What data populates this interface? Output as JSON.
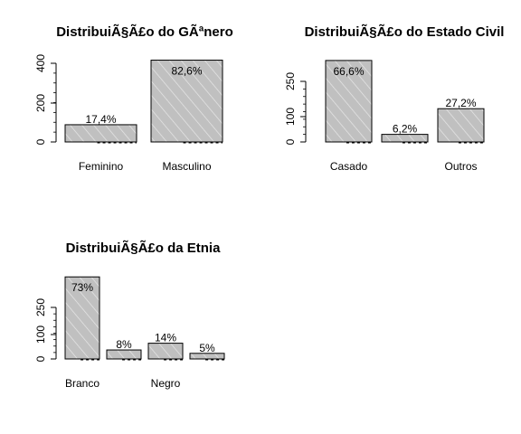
{
  "chart_data": [
    {
      "type": "bar",
      "title": "DistribuiÃ§Ã£o do GÃªnero",
      "categories": [
        "Feminino",
        "Masculino"
      ],
      "category_labels_shown": [
        "Feminino",
        "Masculino"
      ],
      "values": [
        87,
        413
      ],
      "data_labels": [
        "17,4%",
        "82,6%"
      ],
      "yticks": [
        0,
        200,
        400
      ],
      "ylim": [
        0,
        420
      ],
      "bar_color": "#c0c0c0"
    },
    {
      "type": "bar",
      "title": "DistribuiÃ§Ã£o do Estado Civil",
      "categories": [
        "Casado",
        "",
        "Outros"
      ],
      "category_labels_shown": [
        "Casado",
        "",
        "Outros"
      ],
      "values": [
        333,
        31,
        136
      ],
      "data_labels": [
        "66,6%",
        "6,2%",
        "27,2%"
      ],
      "yticks": [
        0,
        100,
        250
      ],
      "ylim": [
        0,
        340
      ],
      "bar_color": "#c0c0c0"
    },
    {
      "type": "bar",
      "title": "DistribuiÃ§Ã£o da Etnia",
      "categories": [
        "Branco",
        "",
        "Negro",
        ""
      ],
      "category_labels_shown": [
        "Branco",
        "",
        "Negro",
        ""
      ],
      "values": [
        365,
        40,
        70,
        25
      ],
      "data_labels": [
        "73%",
        "8%",
        "14%",
        "5%"
      ],
      "yticks": [
        0,
        100,
        250
      ],
      "ylim": [
        0,
        370
      ],
      "bar_color": "#c0c0c0"
    }
  ]
}
